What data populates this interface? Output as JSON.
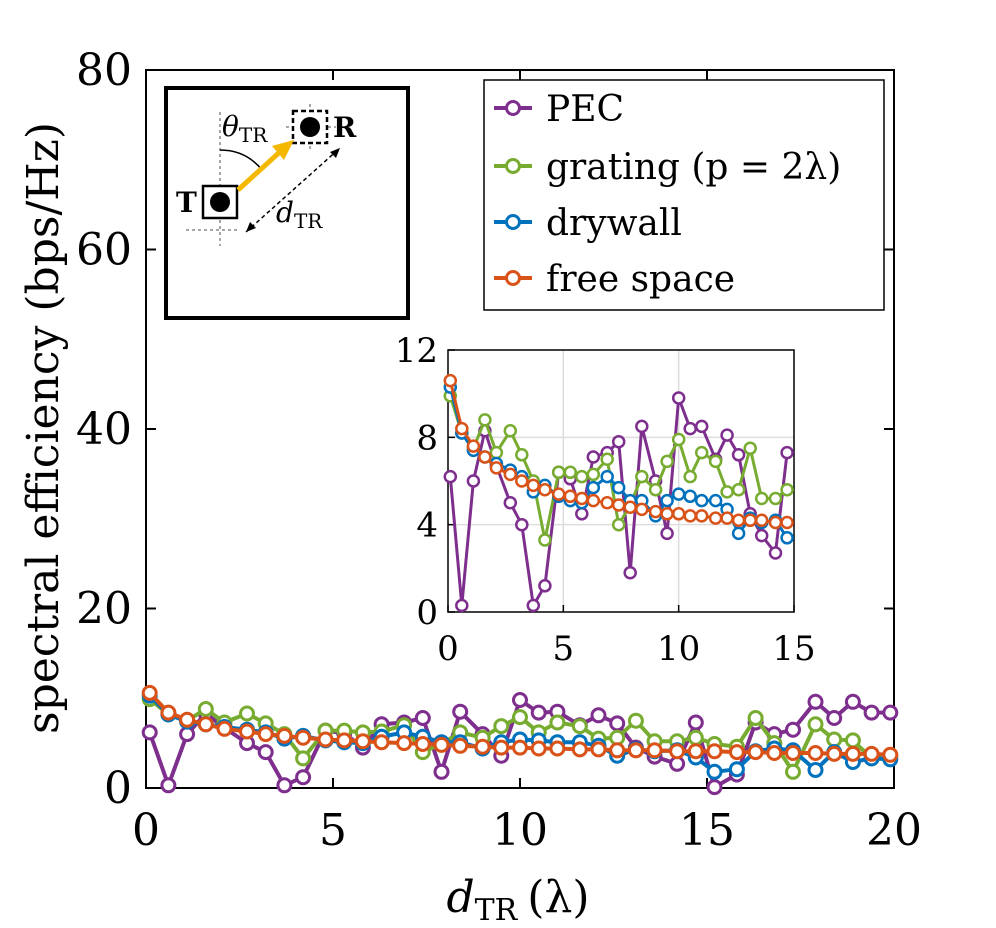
{
  "chart_data": [
    {
      "type": "line",
      "name": "main",
      "xlabel": "d",
      "xlabel_sub": "TR",
      "xlabel_unit": "(λ)",
      "ylabel": "spectral efficiency (bps/Hz)",
      "xlim": [
        0,
        20
      ],
      "ylim": [
        0,
        80
      ],
      "xticks": [
        0,
        5,
        10,
        15,
        20
      ],
      "yticks": [
        0,
        20,
        40,
        60,
        80
      ],
      "xtick_labels": [
        "0",
        "5",
        "10",
        "15",
        "20"
      ],
      "ytick_labels": [
        "0",
        "20",
        "40",
        "60",
        "80"
      ],
      "grid": false,
      "legend_position": "top-right",
      "series": [
        {
          "name": "PEC",
          "color": "#7E2F8E",
          "x": [
            0.1,
            0.6,
            1.1,
            1.6,
            2.1,
            2.7,
            3.2,
            3.7,
            4.2,
            4.8,
            5.3,
            5.8,
            6.3,
            6.9,
            7.4,
            7.9,
            8.4,
            9.0,
            9.5,
            10.0,
            10.5,
            11.0,
            11.6,
            12.1,
            12.6,
            13.1,
            13.6,
            14.2,
            14.7,
            15.2,
            15.8,
            16.3,
            16.8,
            17.3,
            17.9,
            18.4,
            18.9,
            19.4,
            19.9
          ],
          "y": [
            6.2,
            0.3,
            6.0,
            8.3,
            6.7,
            5.0,
            4.0,
            0.3,
            1.2,
            6.4,
            6.1,
            4.5,
            7.1,
            7.3,
            7.8,
            1.8,
            8.5,
            6.0,
            3.6,
            9.8,
            8.4,
            8.5,
            7.0,
            8.1,
            7.2,
            4.5,
            3.5,
            2.7,
            7.3,
            0.1,
            1.5,
            7.3,
            6.0,
            6.5,
            9.6,
            7.8,
            9.6,
            8.4,
            8.4
          ]
        },
        {
          "name": "grating (p = 2λ)",
          "color": "#77AC30",
          "x": [
            0.1,
            0.6,
            1.1,
            1.6,
            2.1,
            2.7,
            3.2,
            3.7,
            4.2,
            4.8,
            5.3,
            5.8,
            6.3,
            6.9,
            7.4,
            7.9,
            8.4,
            9.0,
            9.5,
            10.0,
            10.5,
            11.0,
            11.6,
            12.1,
            12.6,
            13.1,
            13.6,
            14.2,
            14.7,
            15.2,
            15.8,
            16.3,
            16.8,
            17.3,
            17.9,
            18.4,
            18.9,
            19.4,
            19.9
          ],
          "y": [
            9.9,
            8.2,
            7.5,
            8.8,
            7.3,
            8.3,
            7.2,
            6.0,
            3.3,
            6.4,
            6.4,
            6.2,
            6.3,
            7.0,
            4.0,
            4.9,
            6.2,
            5.6,
            6.9,
            7.9,
            6.2,
            7.3,
            6.9,
            5.5,
            5.6,
            7.5,
            5.2,
            5.2,
            5.6,
            4.9,
            4.6,
            7.8,
            5.0,
            1.8,
            7.1,
            5.4,
            5.3,
            3.3,
            3.5
          ]
        },
        {
          "name": "drywall",
          "color": "#0072BD",
          "x": [
            0.1,
            0.6,
            1.1,
            1.6,
            2.1,
            2.7,
            3.2,
            3.7,
            4.2,
            4.8,
            5.3,
            5.8,
            6.3,
            6.9,
            7.4,
            7.9,
            8.4,
            9.0,
            9.5,
            10.0,
            10.5,
            11.0,
            11.6,
            12.1,
            12.6,
            13.1,
            13.6,
            14.2,
            14.7,
            15.2,
            15.8,
            16.3,
            16.8,
            17.3,
            17.9,
            18.4,
            18.9,
            19.4,
            19.9
          ],
          "y": [
            10.3,
            8.2,
            7.4,
            7.1,
            6.8,
            6.5,
            6.2,
            5.5,
            5.8,
            5.3,
            5.1,
            5.0,
            5.7,
            6.2,
            5.7,
            5.1,
            5.1,
            4.4,
            5.1,
            5.4,
            5.3,
            5.1,
            5.1,
            4.7,
            3.6,
            4.3,
            4.1,
            4.2,
            3.4,
            1.8,
            2.1,
            4.1,
            4.4,
            4.2,
            2.0,
            4.0,
            2.9,
            3.3,
            3.2
          ]
        },
        {
          "name": "free space",
          "color": "#D95319",
          "x": [
            0.1,
            0.6,
            1.1,
            1.6,
            2.1,
            2.7,
            3.2,
            3.7,
            4.2,
            4.8,
            5.3,
            5.8,
            6.3,
            6.9,
            7.4,
            7.9,
            8.4,
            9.0,
            9.5,
            10.0,
            10.5,
            11.0,
            11.6,
            12.1,
            12.6,
            13.1,
            13.6,
            14.2,
            14.7,
            15.2,
            15.8,
            16.3,
            16.8,
            17.3,
            17.9,
            18.4,
            18.9,
            19.4,
            19.9
          ],
          "y": [
            10.6,
            8.4,
            7.6,
            7.1,
            6.6,
            6.3,
            6.0,
            5.8,
            5.6,
            5.4,
            5.3,
            5.2,
            5.1,
            5.0,
            4.9,
            4.8,
            4.7,
            4.6,
            4.5,
            4.5,
            4.4,
            4.4,
            4.3,
            4.3,
            4.2,
            4.2,
            4.2,
            4.1,
            4.1,
            4.1,
            4.0,
            4.0,
            3.9,
            3.9,
            3.9,
            3.8,
            3.8,
            3.8,
            3.7
          ]
        }
      ]
    },
    {
      "type": "line",
      "name": "inset",
      "xlim": [
        0,
        15
      ],
      "ylim": [
        0,
        12
      ],
      "xticks": [
        0,
        5,
        10,
        15
      ],
      "yticks": [
        0,
        4,
        8,
        12
      ],
      "xtick_labels": [
        "0",
        "5",
        "10",
        "15"
      ],
      "ytick_labels": [
        "0",
        "4",
        "8",
        "12"
      ],
      "grid": true,
      "note": "zoomed view of the first 15λ of the same four series"
    }
  ],
  "legend": {
    "entries": [
      {
        "label": "PEC",
        "color": "#7E2F8E"
      },
      {
        "label": "grating (p = 2λ)",
        "color": "#77AC30"
      },
      {
        "label": "drywall",
        "color": "#0072BD"
      },
      {
        "label": "free space",
        "color": "#D95319"
      }
    ]
  },
  "schematic": {
    "transmitter_label": "T",
    "receiver_label": "R",
    "angle_label": "θ",
    "angle_sub": "TR",
    "distance_label": "d",
    "distance_sub": "TR",
    "arrow_color": "#F5B800"
  }
}
